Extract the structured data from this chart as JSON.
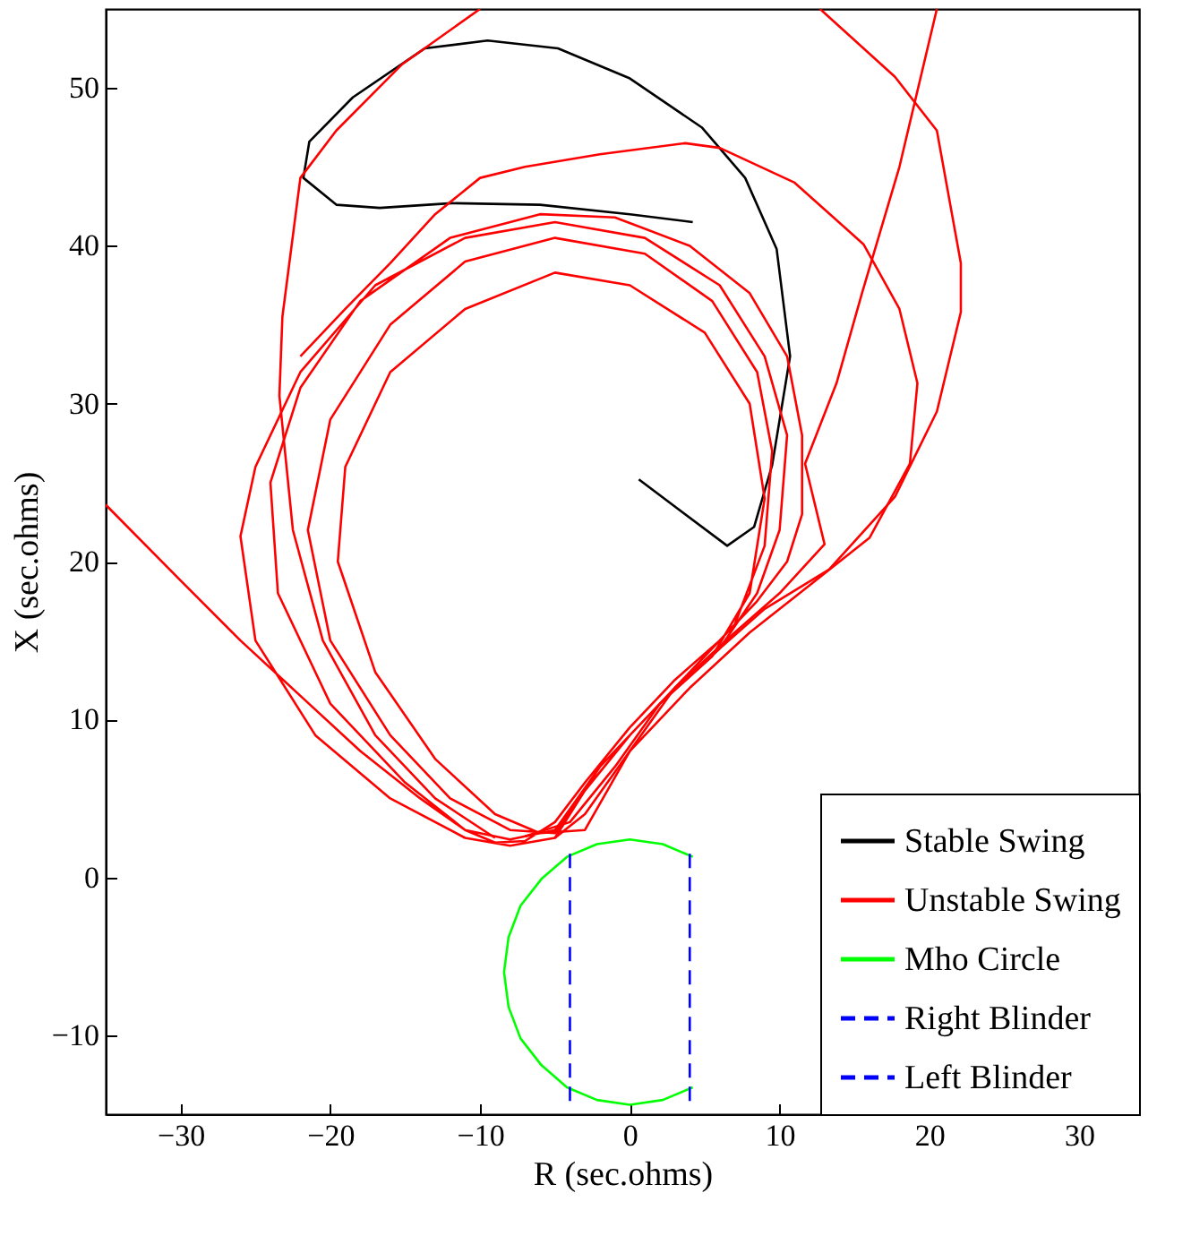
{
  "chart_data": {
    "type": "line",
    "xlabel": "R (sec.ohms)",
    "ylabel": "X (sec.ohms)",
    "xlim": [
      -35,
      34
    ],
    "ylim": [
      -15,
      55
    ],
    "xticks": [
      -30,
      -20,
      -10,
      0,
      10,
      20,
      30
    ],
    "yticks": [
      -10,
      0,
      10,
      20,
      30,
      40,
      50
    ],
    "grid": false,
    "legend": "bottom right",
    "marker": "none",
    "series": [
      {
        "name": "Stable Swing",
        "color": "#000000",
        "line_style": "solid",
        "x": [
          0.6,
          6.5,
          8.3,
          9.5,
          10.7,
          9.8,
          7.7,
          4.8,
          0,
          -4.8,
          -9.5,
          -13.7,
          -18.5,
          -21.4,
          -21.8,
          -19.6,
          -16.7,
          -11.9,
          -6,
          0,
          4.2
        ],
        "values": [
          25.2,
          21,
          22.2,
          26.1,
          33,
          39.8,
          44.3,
          47.5,
          50.6,
          52.5,
          53,
          52.5,
          49.4,
          46.6,
          44.3,
          42.6,
          42.4,
          42.7,
          42.6,
          42,
          41.5
        ]
      },
      {
        "name": "Unstable Swing",
        "color": "#ff0000",
        "line_style": "solid",
        "x": [
          -35,
          -30,
          -26,
          -22,
          -18,
          -14,
          -11,
          -9,
          -7,
          -5,
          -3,
          0,
          3,
          6,
          8.5,
          10.5,
          11.5,
          11.5,
          10.5,
          8,
          4,
          -1,
          -6,
          -12,
          -18,
          -22,
          -24,
          -23.5,
          -20,
          -15,
          -11,
          -8,
          -5,
          -2,
          2,
          6,
          8.5,
          10,
          10.5,
          9,
          6,
          1,
          -5,
          -11,
          -17,
          -22,
          -25,
          -26,
          -25,
          -21,
          -16,
          -11,
          -8,
          -5,
          -3,
          0,
          4,
          7,
          9,
          9.5,
          8.5,
          5.5,
          1,
          -5,
          -11,
          -16,
          -20,
          -21.5,
          -20,
          -16,
          -12,
          -8,
          -5,
          -2,
          2,
          5.5,
          8,
          9,
          8,
          5,
          0,
          -5,
          -11,
          -16,
          -19,
          -19.5,
          -17,
          -13,
          -9,
          -6,
          -3,
          0,
          4,
          8,
          12,
          16,
          18.7,
          19.2,
          18,
          15.6,
          11,
          6,
          3.7,
          -2,
          -7,
          -10,
          -13,
          -16,
          -19,
          -22
        ],
        "values": [
          23.6,
          18.8,
          15,
          11.5,
          8,
          5,
          3,
          2.2,
          2.3,
          3.5,
          6,
          9.5,
          12.5,
          15,
          17.5,
          20,
          23,
          28,
          33,
          37,
          40,
          41.8,
          42,
          40.5,
          36.5,
          31,
          25,
          18,
          11,
          6,
          3,
          2.4,
          3,
          7,
          11,
          14.5,
          18,
          22,
          28,
          33,
          37.5,
          40.5,
          41.5,
          40.5,
          37.5,
          32,
          26,
          21.6,
          15,
          9,
          5,
          2.5,
          2,
          2.5,
          5.5,
          9,
          13,
          16,
          21,
          27,
          32,
          36.5,
          39.5,
          40.5,
          39,
          35,
          29,
          22,
          15,
          9,
          5,
          3,
          2.8,
          7,
          11,
          14,
          18,
          24,
          30,
          34.5,
          37.5,
          38.3,
          36,
          32,
          26,
          20,
          13,
          7.5,
          4,
          2.8,
          3,
          8,
          12,
          15.5,
          18.5,
          21.5,
          26.2,
          31.3,
          36,
          40.1,
          44,
          46.2,
          46.5,
          45.8,
          45,
          44.3,
          42,
          38.9,
          36,
          33
        ]
      },
      {
        "color": "#ff0000",
        "line_style": "solid",
        "x": [
          -9,
          -13,
          -17,
          -20.5,
          -22.5,
          -23.4,
          -23.2,
          -22,
          -19.6,
          -15.2,
          -10
        ],
        "values": [
          2.5,
          5,
          9,
          15,
          22,
          30.5,
          35.5,
          44.3,
          47.3,
          51.5,
          55
        ]
      },
      {
        "color": "#ff0000",
        "line_style": "solid",
        "x": [
          20.5,
          18,
          15.5,
          13.8,
          11.7,
          13,
          10,
          7,
          3,
          0,
          -3,
          -5
        ],
        "values": [
          55,
          45,
          37,
          31.3,
          26.2,
          21.1,
          18,
          15.5,
          12,
          8,
          4,
          2.5
        ]
      },
      {
        "color": "#ff0000",
        "line_style": "solid",
        "x": [
          12.7,
          17.7,
          20.5,
          22.1,
          22.1,
          20.5,
          17.7,
          13.3,
          9,
          6,
          2,
          -1,
          -4,
          -7
        ],
        "values": [
          55,
          50.7,
          47.3,
          38.9,
          35.8,
          29.5,
          24.1,
          19.5,
          17,
          14.5,
          11,
          7,
          3.5,
          2.6
        ]
      },
      {
        "name": "Mho Circle",
        "color": "#00ff00",
        "line_style": "solid",
        "x": [
          4.2,
          2.2,
          0,
          -2.2,
          -4.2,
          -5.9,
          -7.3,
          -8.1,
          -8.4,
          -8.1,
          -7.3,
          -5.9,
          -4.2,
          -2.2,
          0,
          2.2,
          4.2
        ],
        "values": [
          1.3,
          2.1,
          2.4,
          2.1,
          1.3,
          -0.1,
          -1.8,
          -3.8,
          -6,
          -8.2,
          -10.2,
          -11.9,
          -13.3,
          -14.1,
          -14.4,
          -14.1,
          -13.3
        ]
      },
      {
        "name": "Right Blinder",
        "color": "#0000ff",
        "line_style": "dashed",
        "x": [
          4,
          4
        ],
        "values": [
          1.5,
          -14.5
        ]
      },
      {
        "name": "Left Blinder",
        "color": "#0000ff",
        "line_style": "dashed",
        "x": [
          -4,
          -4
        ],
        "values": [
          1.5,
          -14.5
        ]
      }
    ]
  }
}
